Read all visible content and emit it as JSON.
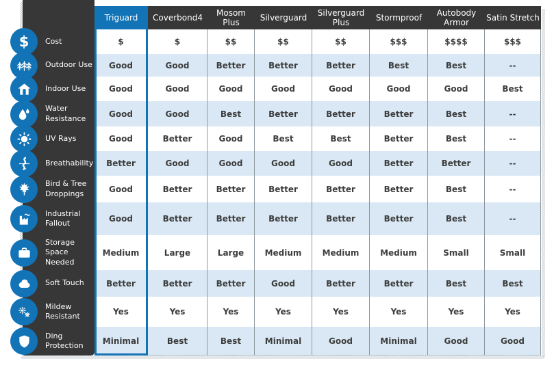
{
  "colors": {
    "accent_blue": "#1273b7",
    "header_dark": "#373737",
    "row_alt_blue": "#d9e8f4",
    "row_white": "#ffffff",
    "grid_line": "#8e979e",
    "value_text": "#3d3d3d"
  },
  "chart_data": {
    "type": "table",
    "legend_position": "none",
    "highlighted_column": "Triguard",
    "columns": [
      "Triguard",
      "Coverbond4",
      "Mosom Plus",
      "Silverguard",
      "Silverguard Plus",
      "Stormproof",
      "Autobody Armor",
      "Satin Stretch"
    ],
    "rows": [
      {
        "label": "Cost",
        "icon": "dollar-icon",
        "values": [
          "$",
          "$",
          "$$",
          "$$",
          "$$",
          "$$$",
          "$$$$",
          "$$$"
        ]
      },
      {
        "label": "Outdoor Use",
        "icon": "trees-icon",
        "values": [
          "Good",
          "Good",
          "Better",
          "Better",
          "Better",
          "Best",
          "Best",
          "--"
        ]
      },
      {
        "label": "Indoor Use",
        "icon": "house-icon",
        "values": [
          "Good",
          "Good",
          "Good",
          "Good",
          "Good",
          "Good",
          "Good",
          "Best"
        ]
      },
      {
        "label": "Water Resistance",
        "icon": "water-drops-icon",
        "values": [
          "Good",
          "Good",
          "Best",
          "Better",
          "Better",
          "Better",
          "Best",
          "--"
        ]
      },
      {
        "label": "UV Rays",
        "icon": "sun-icon",
        "values": [
          "Good",
          "Better",
          "Good",
          "Best",
          "Best",
          "Better",
          "Best",
          "--"
        ]
      },
      {
        "label": "Breathability",
        "icon": "airflow-icon",
        "values": [
          "Better",
          "Good",
          "Good",
          "Good",
          "Good",
          "Better",
          "Better",
          "--"
        ]
      },
      {
        "label": "Bird & Tree Droppings",
        "icon": "maple-leaf-icon",
        "values": [
          "Good",
          "Better",
          "Better",
          "Better",
          "Better",
          "Better",
          "Best",
          "--"
        ]
      },
      {
        "label": "Industrial Fallout",
        "icon": "factory-icon",
        "values": [
          "Good",
          "Better",
          "Better",
          "Better",
          "Better",
          "Better",
          "Best",
          "--"
        ]
      },
      {
        "label": "Storage Space Needed",
        "icon": "suitcase-icon",
        "values": [
          "Medium",
          "Large",
          "Large",
          "Medium",
          "Medium",
          "Medium",
          "Small",
          "Small"
        ]
      },
      {
        "label": "Soft Touch",
        "icon": "cloud-icon",
        "values": [
          "Better",
          "Better",
          "Better",
          "Good",
          "Better",
          "Better",
          "Best",
          "Best"
        ]
      },
      {
        "label": "Mildew Resistant",
        "icon": "spores-icon",
        "values": [
          "Yes",
          "Yes",
          "Yes",
          "Yes",
          "Yes",
          "Yes",
          "Yes",
          "Yes"
        ]
      },
      {
        "label": "Ding Protection",
        "icon": "shield-icon",
        "values": [
          "Minimal",
          "Best",
          "Best",
          "Minimal",
          "Good",
          "Minimal",
          "Good",
          "Good"
        ]
      }
    ]
  }
}
